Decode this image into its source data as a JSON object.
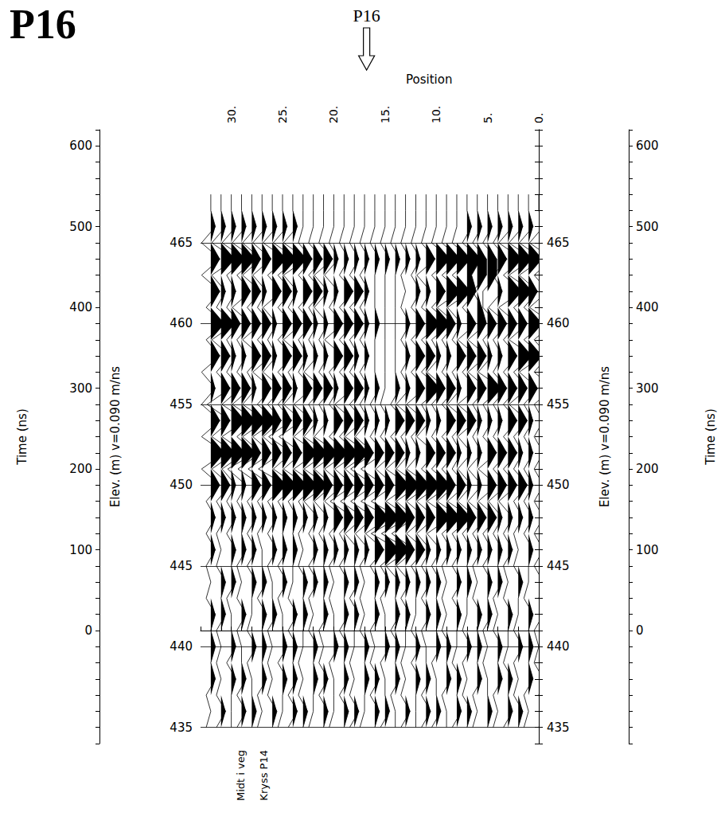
{
  "chart_data": {
    "type": "wiggle",
    "title": "P16",
    "arrow_label": {
      "text": "P16",
      "x": 16.8
    },
    "annotations": [
      {
        "text": "Midt i veg",
        "x": 29.1
      },
      {
        "text": "Kryss P14",
        "x": 26.8
      }
    ],
    "x_label": "Position",
    "y_label": "Elev. (m) v=0.090 m/ns",
    "y2_label": "Time (ns)",
    "xlim": [
      0,
      33
    ],
    "xticks": [
      {
        "value": 0,
        "label": "0."
      },
      {
        "value": 5,
        "label": "5."
      },
      {
        "value": 10,
        "label": "10."
      },
      {
        "value": 15,
        "label": "15."
      },
      {
        "value": 20,
        "label": "20."
      },
      {
        "value": 25,
        "label": "25."
      },
      {
        "value": 30,
        "label": "30."
      }
    ],
    "ylim": [
      434,
      472
    ],
    "yticks": [
      435,
      440,
      445,
      450,
      455,
      460,
      465
    ],
    "y2lim": [
      -140,
      620
    ],
    "y2ticks": [
      0,
      100,
      200,
      300,
      400,
      500,
      600
    ],
    "grid": true,
    "color": "#000000",
    "positions": [
      0,
      1,
      2,
      3,
      4,
      5,
      6,
      7,
      8,
      9,
      10,
      11,
      12,
      13,
      14,
      15,
      16,
      17,
      18,
      19,
      20,
      21,
      22,
      23,
      24,
      25,
      26,
      27,
      28,
      29,
      30,
      31,
      32
    ],
    "elevations": [
      468,
      467,
      466,
      465,
      464,
      463,
      462,
      461,
      460,
      459,
      458,
      457,
      456,
      455,
      454,
      453,
      452,
      451,
      450,
      449,
      448,
      447,
      446,
      445,
      444,
      443,
      442,
      441,
      440,
      439,
      438,
      437,
      436,
      435
    ],
    "amplitude": [
      [
        0,
        0,
        0,
        0,
        0,
        0,
        0,
        0,
        0,
        0,
        0,
        0,
        0,
        0,
        0,
        0,
        0,
        0,
        0,
        0,
        0,
        0,
        0,
        0,
        0,
        0,
        0,
        0,
        0,
        0,
        0,
        0,
        0
      ],
      [
        0,
        0,
        0,
        0,
        0,
        0,
        0,
        0,
        0,
        0,
        0,
        0,
        0,
        0,
        0,
        0,
        0,
        0,
        0,
        0,
        0,
        0,
        0,
        0,
        0,
        0,
        0,
        0,
        0,
        0,
        0,
        0,
        0
      ],
      [
        1,
        1,
        1,
        1,
        1,
        1,
        1,
        1,
        0,
        0,
        0,
        0,
        0,
        0,
        0,
        0,
        0,
        0,
        0,
        0,
        0,
        0,
        0,
        0,
        1,
        1,
        1,
        1,
        1,
        1,
        1,
        1,
        1
      ],
      [
        -2,
        -2,
        -2,
        -2,
        -1,
        -1,
        -1,
        -1,
        -1,
        -1,
        -1,
        -1,
        -1,
        -1,
        -1,
        -1,
        -1,
        -1,
        -1,
        -1,
        -1,
        -1,
        -1,
        -1,
        -2,
        -2,
        -2,
        -2,
        -2,
        -2,
        -2,
        -2,
        -2
      ],
      [
        3,
        3,
        3,
        3,
        2,
        2,
        2,
        3,
        3,
        3,
        3,
        2,
        1,
        1,
        1,
        1,
        1,
        1,
        1,
        1,
        1,
        2,
        2,
        2,
        3,
        3,
        3,
        2,
        2,
        3,
        3,
        3,
        2
      ],
      [
        -1,
        -2,
        -2,
        -1,
        -1,
        2,
        2,
        1,
        -1,
        -1,
        -1,
        -2,
        -1,
        -1,
        0,
        0,
        0,
        -1,
        -1,
        -1,
        -2,
        -2,
        -1,
        -1,
        -2,
        -1,
        -1,
        -2,
        -2,
        -1,
        -1,
        -2,
        -2
      ],
      [
        2,
        2,
        3,
        3,
        1,
        -1,
        -1,
        2,
        3,
        3,
        2,
        1,
        1,
        0,
        0,
        0,
        0,
        1,
        2,
        2,
        1,
        1,
        2,
        2,
        1,
        2,
        2,
        1,
        2,
        2,
        1,
        1,
        2
      ],
      [
        -2,
        -1,
        -1,
        -2,
        -2,
        -1,
        1,
        -1,
        -2,
        -2,
        -1,
        -1,
        -1,
        -1,
        0,
        0,
        0,
        -1,
        -1,
        -1,
        -1,
        -2,
        -1,
        -1,
        -1,
        -1,
        -2,
        -1,
        -1,
        -2,
        -1,
        -1,
        -1
      ],
      [
        3,
        3,
        2,
        2,
        2,
        2,
        2,
        2,
        1,
        2,
        3,
        3,
        2,
        1,
        0,
        0,
        1,
        1,
        2,
        2,
        2,
        1,
        1,
        2,
        2,
        2,
        1,
        2,
        2,
        2,
        2,
        3,
        3
      ],
      [
        -1,
        -1,
        -2,
        -1,
        -1,
        -1,
        -2,
        -2,
        -1,
        -1,
        -1,
        -1,
        -1,
        -1,
        0,
        0,
        0,
        -1,
        -1,
        -1,
        -2,
        -1,
        -1,
        -1,
        -2,
        -1,
        -1,
        -1,
        -2,
        -1,
        -1,
        -2,
        -1
      ],
      [
        2,
        3,
        3,
        2,
        1,
        1,
        2,
        2,
        2,
        1,
        1,
        2,
        2,
        1,
        0,
        0,
        0,
        1,
        1,
        2,
        2,
        1,
        1,
        1,
        2,
        2,
        1,
        2,
        2,
        1,
        1,
        2,
        2
      ],
      [
        -1,
        -2,
        -1,
        -1,
        -1,
        -2,
        -2,
        -1,
        -1,
        -1,
        -2,
        -1,
        -1,
        -1,
        0,
        0,
        0,
        -1,
        -1,
        -1,
        -1,
        -1,
        -2,
        -1,
        -1,
        -1,
        -2,
        -2,
        -1,
        -1,
        -1,
        -1,
        -2
      ],
      [
        3,
        2,
        2,
        2,
        2,
        3,
        2,
        2,
        1,
        2,
        2,
        3,
        2,
        1,
        1,
        0,
        1,
        1,
        2,
        2,
        1,
        2,
        2,
        2,
        1,
        2,
        2,
        2,
        1,
        2,
        2,
        2,
        1
      ],
      [
        -1,
        -1,
        -2,
        -1,
        -1,
        -1,
        -1,
        -2,
        -2,
        -1,
        -1,
        -1,
        -2,
        -2,
        -1,
        -1,
        -1,
        -1,
        -1,
        -2,
        -1,
        -1,
        -1,
        -2,
        -2,
        -1,
        -1,
        -1,
        -2,
        -2,
        -2,
        -3,
        -2
      ],
      [
        1,
        1,
        2,
        2,
        1,
        1,
        1,
        2,
        2,
        2,
        1,
        1,
        2,
        2,
        2,
        1,
        1,
        1,
        2,
        2,
        2,
        1,
        1,
        2,
        2,
        2,
        2,
        3,
        3,
        3,
        3,
        2,
        2
      ],
      [
        -1,
        -1,
        -1,
        -1,
        -1,
        -1,
        -1,
        -2,
        -1,
        -1,
        -1,
        -2,
        -1,
        -1,
        -1,
        -1,
        -1,
        -2,
        -2,
        -1,
        -1,
        -2,
        -2,
        -2,
        -3,
        -3,
        -2,
        -2,
        -2,
        -1,
        -2,
        -2,
        -2
      ],
      [
        1,
        1,
        1,
        2,
        2,
        2,
        1,
        1,
        1,
        2,
        2,
        2,
        1,
        1,
        2,
        2,
        2,
        2,
        3,
        3,
        3,
        3,
        3,
        3,
        2,
        2,
        2,
        2,
        2,
        3,
        3,
        3,
        3
      ],
      [
        -1,
        -1,
        -1,
        -1,
        -1,
        -2,
        -2,
        -2,
        -1,
        -1,
        -1,
        -1,
        -2,
        -2,
        -2,
        -2,
        -3,
        -3,
        -2,
        -2,
        -2,
        -2,
        -2,
        -2,
        -2,
        -2,
        -3,
        -3,
        -3,
        -3,
        -2,
        -2,
        -2
      ],
      [
        1,
        1,
        2,
        2,
        2,
        2,
        1,
        1,
        2,
        2,
        3,
        3,
        3,
        3,
        3,
        2,
        2,
        2,
        2,
        2,
        2,
        2,
        3,
        3,
        3,
        3,
        3,
        2,
        2,
        1,
        1,
        2,
        2
      ],
      [
        -1,
        -1,
        -1,
        -2,
        -2,
        -2,
        -2,
        -2,
        -2,
        -2,
        -2,
        -2,
        -2,
        -2,
        -2,
        -3,
        -3,
        -3,
        -3,
        -3,
        -2,
        -2,
        -2,
        -1,
        -1,
        -1,
        -1,
        -1,
        -1,
        -1,
        -1,
        -1,
        -1
      ],
      [
        1,
        1,
        1,
        1,
        1,
        2,
        2,
        2,
        3,
        3,
        3,
        2,
        2,
        2,
        3,
        3,
        3,
        2,
        2,
        2,
        2,
        1,
        1,
        1,
        1,
        1,
        1,
        1,
        1,
        1,
        1,
        1,
        1
      ],
      [
        -1,
        -1,
        -1,
        -1,
        -1,
        -1,
        -1,
        -1,
        -1,
        -1,
        -2,
        -2,
        -2,
        -3,
        -3,
        -3,
        -2,
        -2,
        -2,
        -1,
        -1,
        -1,
        -1,
        -1,
        0,
        0,
        -1,
        -1,
        -1,
        0,
        -1,
        -1,
        -1
      ],
      [
        1,
        1,
        0,
        1,
        1,
        1,
        1,
        1,
        1,
        1,
        1,
        1,
        2,
        2,
        3,
        3,
        2,
        1,
        1,
        1,
        1,
        1,
        1,
        0,
        1,
        1,
        1,
        0,
        1,
        1,
        1,
        0,
        1
      ],
      [
        -1,
        0,
        -1,
        -1,
        0,
        -1,
        -1,
        0,
        -1,
        -1,
        -1,
        -1,
        -1,
        -2,
        -2,
        -1,
        -1,
        -1,
        0,
        -1,
        -1,
        0,
        -1,
        -1,
        0,
        -1,
        -1,
        0,
        -1,
        -1,
        0,
        -1,
        -1
      ],
      [
        1,
        0,
        1,
        0,
        1,
        1,
        0,
        1,
        1,
        0,
        1,
        1,
        1,
        1,
        1,
        1,
        1,
        0,
        1,
        1,
        0,
        1,
        1,
        1,
        0,
        1,
        0,
        1,
        1,
        0,
        1,
        1,
        0
      ],
      [
        0,
        -1,
        0,
        -1,
        -1,
        0,
        -1,
        0,
        -1,
        -1,
        0,
        -1,
        0,
        -1,
        0,
        -1,
        0,
        -1,
        -1,
        0,
        -1,
        0,
        -1,
        0,
        -1,
        -1,
        0,
        -1,
        0,
        -1,
        -1,
        0,
        -1
      ],
      [
        1,
        1,
        0,
        1,
        0,
        1,
        1,
        0,
        1,
        0,
        1,
        1,
        0,
        1,
        1,
        0,
        1,
        0,
        1,
        1,
        0,
        1,
        0,
        1,
        1,
        0,
        1,
        1,
        0,
        1,
        0,
        1,
        1
      ],
      [
        -1,
        0,
        -1,
        0,
        -1,
        -1,
        0,
        -1,
        0,
        -1,
        0,
        -1,
        -1,
        0,
        -1,
        0,
        -1,
        -1,
        0,
        -1,
        0,
        -1,
        -1,
        0,
        -1,
        0,
        -1,
        0,
        -1,
        -1,
        0,
        -1,
        0
      ],
      [
        0,
        1,
        1,
        0,
        1,
        0,
        1,
        1,
        0,
        1,
        1,
        0,
        1,
        0,
        1,
        1,
        0,
        1,
        0,
        1,
        1,
        0,
        1,
        0,
        1,
        1,
        0,
        1,
        1,
        0,
        1,
        0,
        1
      ],
      [
        -1,
        0,
        -1,
        -1,
        0,
        -1,
        0,
        -1,
        -1,
        0,
        -1,
        0,
        -1,
        -1,
        0,
        -1,
        -1,
        0,
        -1,
        0,
        -1,
        -1,
        0,
        -1,
        0,
        -1,
        -1,
        0,
        -1,
        0,
        -1,
        -1,
        0
      ],
      [
        1,
        1,
        0,
        1,
        1,
        0,
        1,
        0,
        1,
        1,
        0,
        1,
        1,
        0,
        1,
        0,
        1,
        1,
        0,
        1,
        0,
        1,
        1,
        0,
        1,
        1,
        0,
        1,
        0,
        1,
        1,
        0,
        1
      ],
      [
        0,
        -1,
        -1,
        0,
        -1,
        0,
        -1,
        -1,
        0,
        -1,
        0,
        -1,
        0,
        -1,
        -1,
        0,
        -1,
        0,
        -1,
        -1,
        0,
        -1,
        0,
        -1,
        -1,
        0,
        -1,
        -1,
        0,
        -1,
        0,
        -1,
        -1
      ],
      [
        1,
        0,
        1,
        1,
        0,
        1,
        0,
        1,
        1,
        0,
        1,
        1,
        0,
        1,
        0,
        1,
        1,
        0,
        1,
        1,
        0,
        1,
        0,
        1,
        1,
        0,
        1,
        0,
        1,
        1,
        0,
        1,
        0
      ],
      [
        0,
        -1,
        0,
        -1,
        -1,
        0,
        -1,
        0,
        -1,
        0,
        -1,
        -1,
        0,
        -1,
        0,
        -1,
        0,
        -1,
        -1,
        0,
        -1,
        0,
        -1,
        0,
        -1,
        -1,
        0,
        -1,
        0,
        -1,
        0,
        -1,
        -1
      ]
    ]
  }
}
